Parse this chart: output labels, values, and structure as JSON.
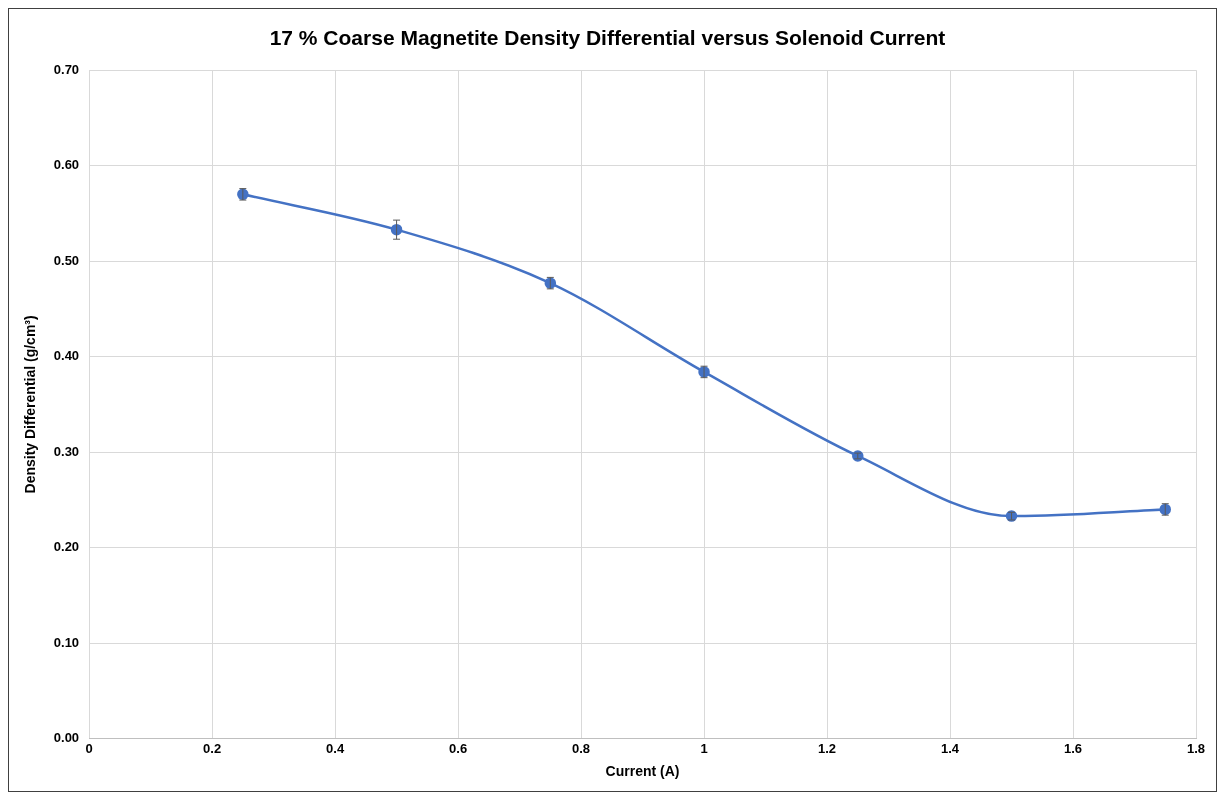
{
  "chart_data": {
    "type": "line",
    "title": "17 % Coarse Magnetite Density Differential versus Solenoid Current",
    "xlabel": "Current (A)",
    "ylabel": "Density Differential (g/cm³)",
    "x": [
      0.25,
      0.5,
      0.75,
      1,
      1.25,
      1.5,
      1.75
    ],
    "series": [
      {
        "color": "#4472c4",
        "values": [
          0.57,
          0.533,
          0.477,
          0.384,
          0.296,
          0.233,
          0.24
        ],
        "errors": [
          0.006,
          0.01,
          0.006,
          0.006,
          0.003,
          0.004,
          0.006
        ]
      }
    ],
    "xlim": [
      0,
      1.8
    ],
    "xticks": [
      0,
      0.2,
      0.4,
      0.6,
      0.8,
      1,
      1.2,
      1.4,
      1.6,
      1.8
    ],
    "ylim": [
      0,
      0.7
    ],
    "yticks": [
      {
        "value": 0,
        "label": "0.00"
      },
      {
        "value": 0.1,
        "label": "0.10"
      },
      {
        "value": 0.2,
        "label": "0.20"
      },
      {
        "value": 0.3,
        "label": "0.30"
      },
      {
        "value": 0.4,
        "label": "0.40"
      },
      {
        "value": 0.5,
        "label": "0.50"
      },
      {
        "value": 0.6,
        "label": "0.60"
      },
      {
        "value": 0.7,
        "label": "0.70"
      }
    ],
    "grid": true,
    "marker": "circle",
    "line_style": "solid"
  }
}
